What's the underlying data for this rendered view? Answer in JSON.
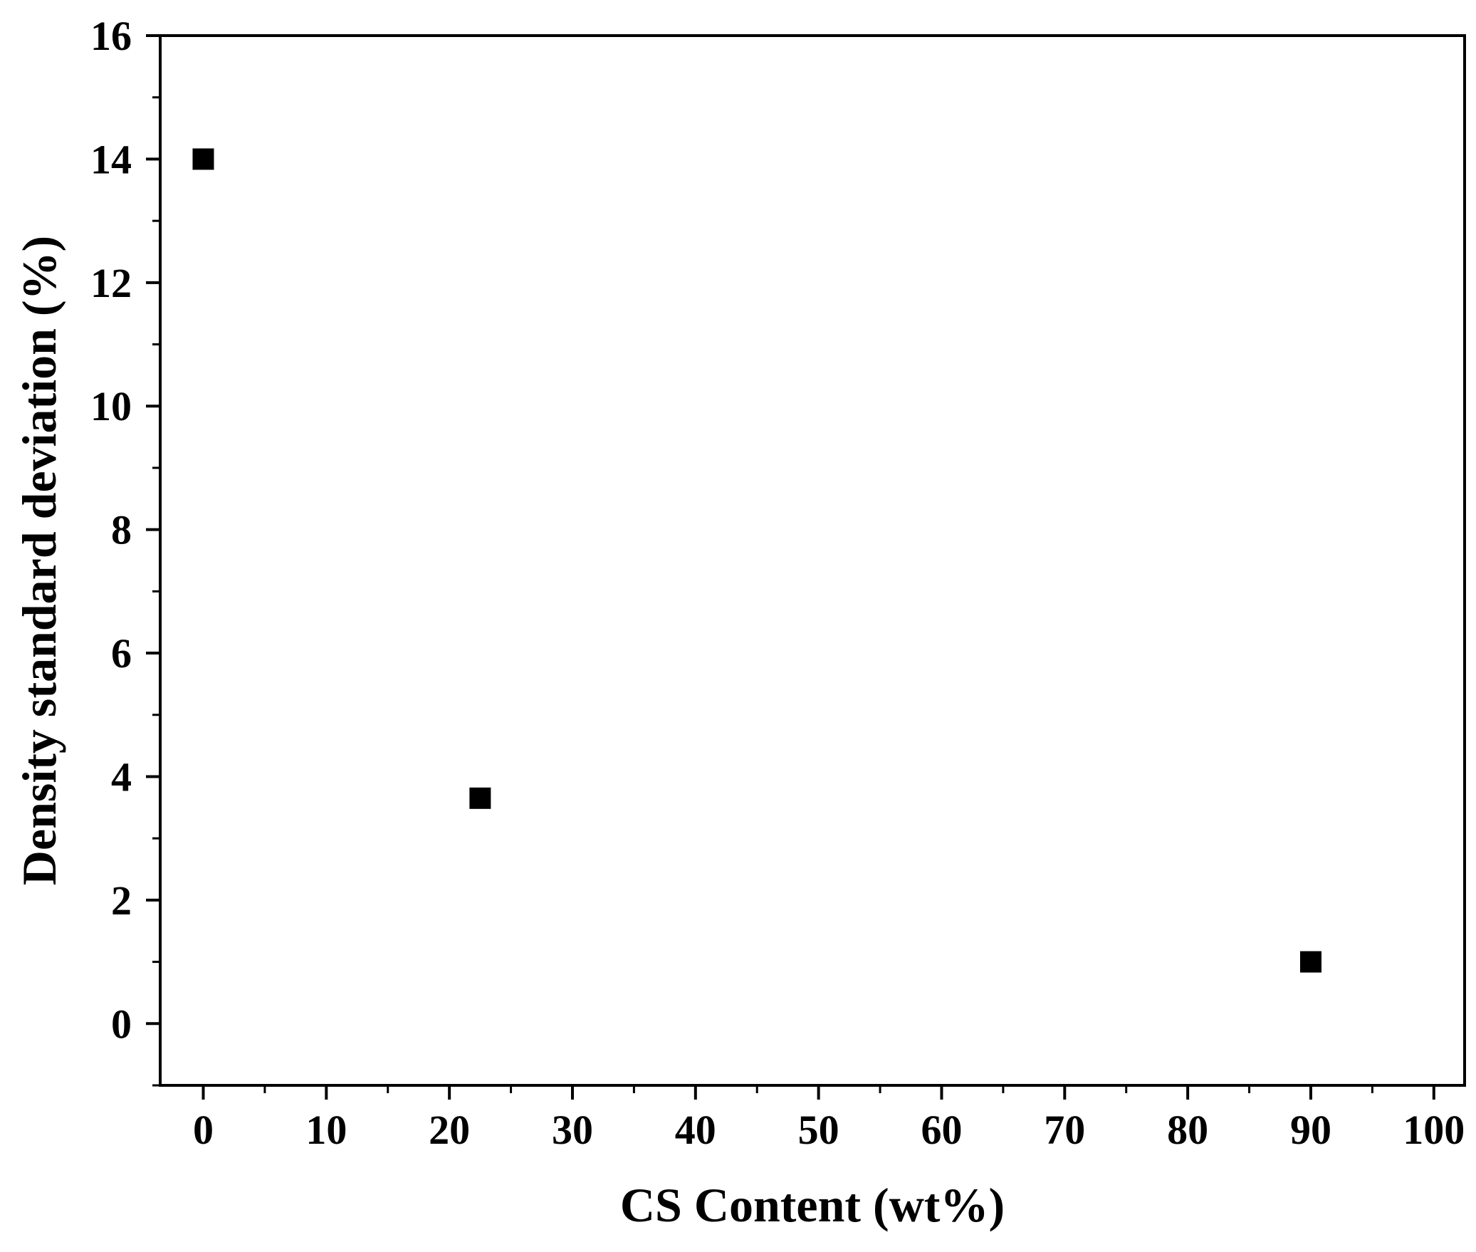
{
  "chart_data": {
    "type": "scatter",
    "title": "",
    "xlabel": "CS Content (wt%)",
    "ylabel": "Density standard deviation (%)",
    "xlim": [
      -3.5,
      102.5
    ],
    "ylim": [
      -1,
      16
    ],
    "x_ticks": [
      0,
      10,
      20,
      30,
      40,
      50,
      60,
      70,
      80,
      90,
      100
    ],
    "y_ticks": [
      0,
      2,
      4,
      6,
      8,
      10,
      12,
      14,
      16
    ],
    "x_minor_step": 5,
    "y_minor_step": 1,
    "grid": false,
    "legend": "none",
    "marker": "square",
    "marker_color": "#000000",
    "series": [
      {
        "points": [
          {
            "x": 0,
            "y": 14.0
          },
          {
            "x": 22.5,
            "y": 3.65
          },
          {
            "x": 90,
            "y": 1.0
          }
        ]
      }
    ]
  }
}
